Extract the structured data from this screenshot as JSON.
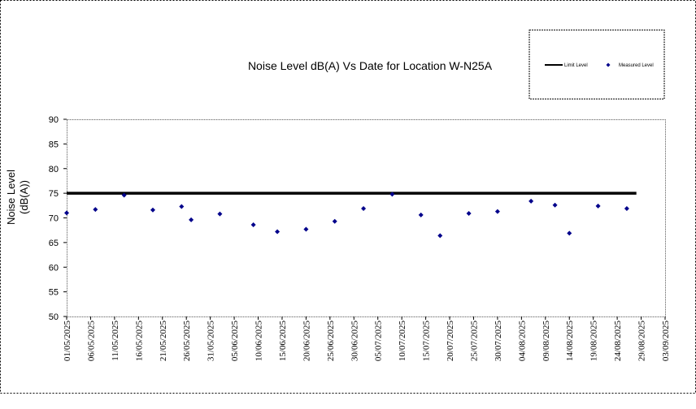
{
  "chart_data": {
    "type": "scatter",
    "title": "Noise Level dB(A) Vs Date for Location W-N25A",
    "xlabel": "",
    "ylabel_lines": [
      "Noise Level",
      "(dB(A))"
    ],
    "ylim": [
      50,
      90
    ],
    "yticks": [
      50,
      55,
      60,
      65,
      70,
      75,
      80,
      85,
      90
    ],
    "xlim": [
      "01/05/2025",
      "03/09/2025"
    ],
    "xtick_labels": [
      "01/05/2025",
      "06/05/2025",
      "11/05/2025",
      "16/05/2025",
      "21/05/2025",
      "26/05/2025",
      "31/05/2025",
      "05/06/2025",
      "10/06/2025",
      "15/06/2025",
      "20/06/2025",
      "25/06/2025",
      "30/06/2025",
      "05/07/2025",
      "10/07/2025",
      "15/07/2025",
      "20/07/2025",
      "25/07/2025",
      "30/07/2025",
      "04/08/2025",
      "09/08/2025",
      "14/08/2025",
      "19/08/2025",
      "24/08/2025",
      "29/08/2025",
      "03/09/2025"
    ],
    "legend_position": "top-right",
    "series": [
      {
        "name": "Limit Level",
        "kind": "line",
        "color": "#000000",
        "x": [
          "01/05/2025",
          "28/08/2025"
        ],
        "y": [
          75,
          75
        ]
      },
      {
        "name": "Measured Level",
        "kind": "scatter",
        "color": "#00008B",
        "x": [
          "01/05/2025",
          "07/05/2025",
          "13/05/2025",
          "19/05/2025",
          "25/05/2025",
          "27/05/2025",
          "02/06/2025",
          "09/06/2025",
          "14/06/2025",
          "20/06/2025",
          "26/06/2025",
          "02/07/2025",
          "08/07/2025",
          "14/07/2025",
          "18/07/2025",
          "24/07/2025",
          "30/07/2025",
          "06/08/2025",
          "11/08/2025",
          "14/08/2025",
          "20/08/2025",
          "26/08/2025"
        ],
        "y": [
          71.0,
          71.7,
          74.6,
          71.6,
          72.3,
          69.6,
          70.8,
          68.6,
          67.2,
          67.7,
          69.3,
          71.9,
          74.8,
          70.6,
          66.4,
          70.9,
          71.3,
          73.4,
          72.6,
          66.9,
          72.4,
          71.9
        ]
      }
    ]
  }
}
